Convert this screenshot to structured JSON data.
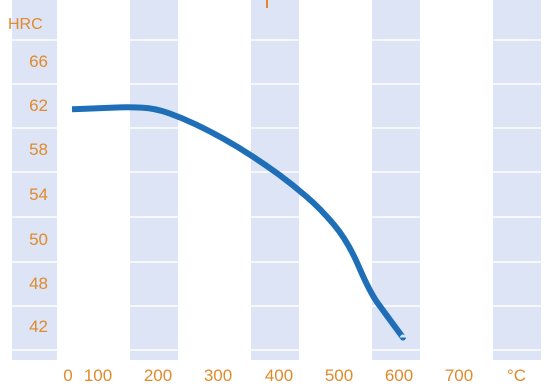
{
  "chart_data": {
    "type": "line",
    "title": "",
    "ylabel": "HRC",
    "xlabel": "",
    "x_unit": "°C",
    "y_ticks": [
      "66",
      "62",
      "58",
      "54",
      "50",
      "48",
      "42"
    ],
    "x_ticks": [
      "0",
      "100",
      "200",
      "300",
      "400",
      "500",
      "600",
      "700"
    ],
    "series": [
      {
        "color": "#1f6fb8",
        "points": [
          {
            "x": 0,
            "y": 61.8
          },
          {
            "x": 50,
            "y": 61.9
          },
          {
            "x": 100,
            "y": 62.0
          },
          {
            "x": 150,
            "y": 61.9
          },
          {
            "x": 200,
            "y": 61.0
          },
          {
            "x": 250,
            "y": 59.8
          },
          {
            "x": 300,
            "y": 58.4
          },
          {
            "x": 350,
            "y": 56.8
          },
          {
            "x": 400,
            "y": 55.0
          },
          {
            "x": 450,
            "y": 52.9
          },
          {
            "x": 500,
            "y": 50.0
          },
          {
            "x": 540,
            "y": 47.0
          },
          {
            "x": 570,
            "y": 44.0
          },
          {
            "x": 600,
            "y": 41.0
          }
        ]
      }
    ],
    "colors": {
      "band": "#dce4f5",
      "label": "#e08a2c",
      "line": "#1f6fb8"
    }
  }
}
